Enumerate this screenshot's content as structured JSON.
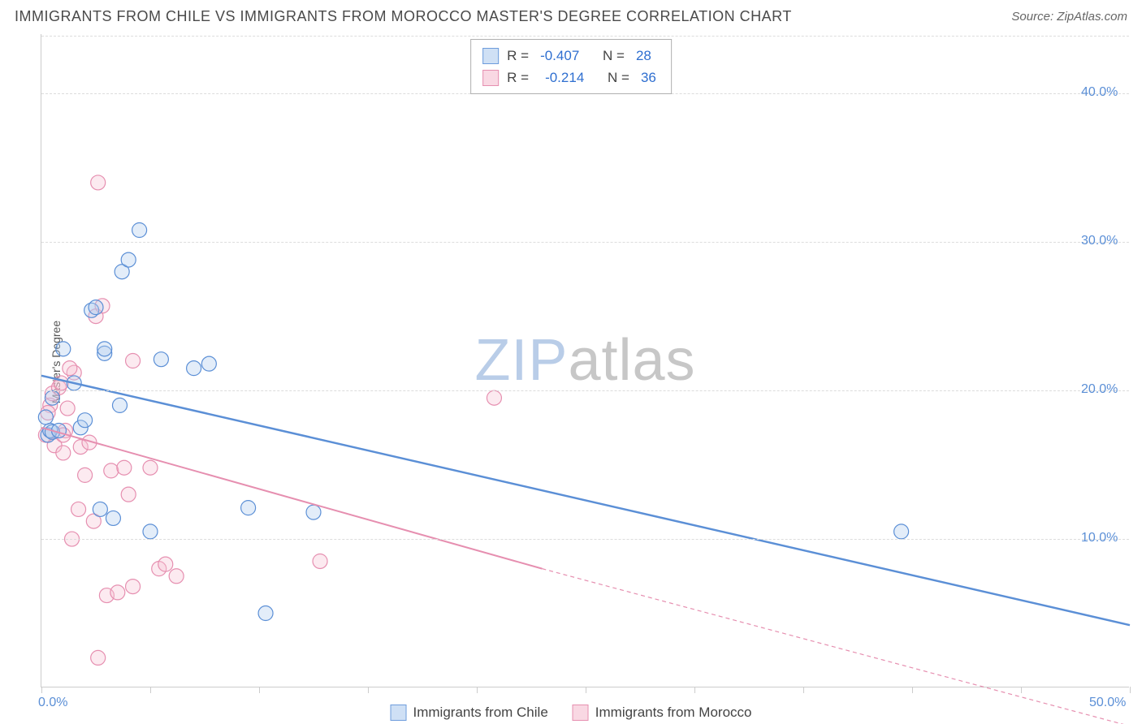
{
  "title": "IMMIGRANTS FROM CHILE VS IMMIGRANTS FROM MOROCCO MASTER'S DEGREE CORRELATION CHART",
  "source_label": "Source: ",
  "source_value": "ZipAtlas.com",
  "watermark_a": "ZIP",
  "watermark_b": "atlas",
  "ylabel": "Master's Degree",
  "chart": {
    "type": "scatter",
    "background_color": "#ffffff",
    "grid_color": "#dcdcdc",
    "axis_color": "#cccccc",
    "text_color": "#555555",
    "tick_label_color": "#5b8fd6",
    "xlim": [
      0,
      50
    ],
    "ylim": [
      0,
      44
    ],
    "xticks": [
      0,
      5,
      10,
      15,
      20,
      25,
      30,
      35,
      40,
      45,
      50
    ],
    "xticks_labeled": [
      {
        "v": 0,
        "label": "0.0%"
      },
      {
        "v": 50,
        "label": "50.0%"
      }
    ],
    "yticks": [
      {
        "v": 10,
        "label": "10.0%"
      },
      {
        "v": 20,
        "label": "20.0%"
      },
      {
        "v": 30,
        "label": "30.0%"
      },
      {
        "v": 40,
        "label": "40.0%"
      }
    ],
    "marker_radius": 9,
    "marker_stroke_width": 1.2,
    "marker_fill_opacity": 0.35,
    "label_fontsize": 14,
    "tick_fontsize": 16
  },
  "series": {
    "chile": {
      "label": "Immigrants from Chile",
      "color_stroke": "#5b8fd6",
      "color_fill": "#aecbef",
      "swatch_fill": "#cfe0f5",
      "swatch_border": "#6d9cdc",
      "R_label": "R =",
      "R": "-0.407",
      "N_label": "N =",
      "N": "28",
      "trend": {
        "x1": 0,
        "y1": 21.0,
        "x2": 50,
        "y2": 4.2,
        "width": 2.5
      },
      "points": [
        [
          0.3,
          17.0
        ],
        [
          0.4,
          17.3
        ],
        [
          0.5,
          19.5
        ],
        [
          0.5,
          17.2
        ],
        [
          0.8,
          17.3
        ],
        [
          1.0,
          22.8
        ],
        [
          1.5,
          20.5
        ],
        [
          1.8,
          17.5
        ],
        [
          2.0,
          18.0
        ],
        [
          2.3,
          25.4
        ],
        [
          2.5,
          25.6
        ],
        [
          2.7,
          12.0
        ],
        [
          2.9,
          22.5
        ],
        [
          2.9,
          22.8
        ],
        [
          3.3,
          11.4
        ],
        [
          3.6,
          19.0
        ],
        [
          3.7,
          28.0
        ],
        [
          4.0,
          28.8
        ],
        [
          4.5,
          30.8
        ],
        [
          5.0,
          10.5
        ],
        [
          5.5,
          22.1
        ],
        [
          7.0,
          21.5
        ],
        [
          7.7,
          21.8
        ],
        [
          9.5,
          12.1
        ],
        [
          10.3,
          5.0
        ],
        [
          12.5,
          11.8
        ],
        [
          39.5,
          10.5
        ],
        [
          0.2,
          18.2
        ]
      ]
    },
    "morocco": {
      "label": "Immigrants from Morocco",
      "color_stroke": "#e68fb0",
      "color_fill": "#f6c3d5",
      "swatch_fill": "#f9d8e3",
      "swatch_border": "#e68fb0",
      "R_label": "R =",
      "R": "-0.214",
      "N_label": "N =",
      "N": "36",
      "trend_solid": {
        "x1": 0,
        "y1": 17.5,
        "x2": 23,
        "y2": 8.0,
        "width": 2
      },
      "trend_dashed": {
        "x1": 23,
        "y1": 8.0,
        "x2": 50,
        "y2": -2.6,
        "width": 1.2,
        "dash": "5,4"
      },
      "points": [
        [
          0.2,
          17.0
        ],
        [
          0.4,
          19.0
        ],
        [
          0.5,
          19.8
        ],
        [
          0.6,
          16.3
        ],
        [
          0.8,
          20.2
        ],
        [
          0.9,
          20.5
        ],
        [
          1.0,
          15.8
        ],
        [
          1.1,
          17.3
        ],
        [
          1.2,
          18.8
        ],
        [
          1.4,
          10.0
        ],
        [
          1.5,
          21.2
        ],
        [
          1.7,
          12.0
        ],
        [
          1.8,
          16.2
        ],
        [
          2.0,
          14.3
        ],
        [
          2.2,
          16.5
        ],
        [
          2.4,
          11.2
        ],
        [
          2.5,
          25.0
        ],
        [
          2.6,
          2.0
        ],
        [
          2.8,
          25.7
        ],
        [
          3.0,
          6.2
        ],
        [
          3.2,
          14.6
        ],
        [
          3.5,
          6.4
        ],
        [
          3.8,
          14.8
        ],
        [
          4.0,
          13.0
        ],
        [
          4.2,
          22.0
        ],
        [
          4.2,
          6.8
        ],
        [
          5.0,
          14.8
        ],
        [
          5.4,
          8.0
        ],
        [
          5.7,
          8.3
        ],
        [
          6.2,
          7.5
        ],
        [
          2.6,
          34.0
        ],
        [
          12.8,
          8.5
        ],
        [
          20.8,
          19.5
        ],
        [
          1.3,
          21.5
        ],
        [
          0.3,
          18.5
        ],
        [
          1.0,
          17.0
        ]
      ]
    }
  }
}
